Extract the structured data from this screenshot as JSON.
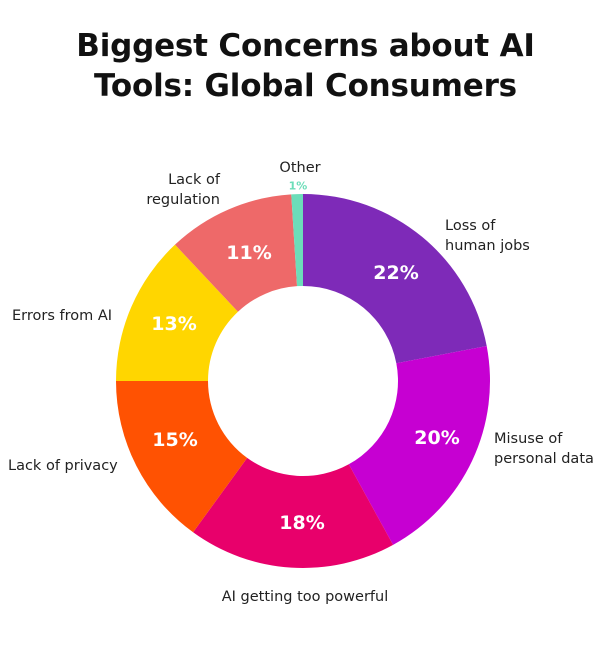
{
  "title_lines": [
    "Biggest Concerns about AI",
    "Tools: Global Consumers"
  ],
  "chart_data": {
    "type": "pie",
    "subtype": "donut",
    "title": "Biggest Concerns about AI Tools: Global Consumers",
    "start_angle_deg": 0,
    "direction": "clockwise",
    "categories": [
      "Loss of human jobs",
      "Misuse of personal data",
      "AI getting too powerful",
      "Lack of privacy",
      "Errors from AI",
      "Lack of regulation",
      "Other"
    ],
    "values": [
      22,
      20,
      18,
      15,
      13,
      11,
      1
    ],
    "unit": "%",
    "colors": [
      "#7E2AB8",
      "#C600D2",
      "#E8006B",
      "#FF5202",
      "#FFD600",
      "#EE6969",
      "#6CDDB9"
    ],
    "value_labels": [
      "22%",
      "20%",
      "18%",
      "15%",
      "13%",
      "11%",
      "1%"
    ]
  },
  "labels": {
    "jobs": [
      "Loss of",
      "human jobs"
    ],
    "misuse": [
      "Misuse of",
      "personal data"
    ],
    "powerful": [
      "AI getting too powerful"
    ],
    "privacy": [
      "Lack of privacy"
    ],
    "errors": [
      "Errors from AI"
    ],
    "regulation": [
      "Lack of",
      "regulation"
    ],
    "other": [
      "Other"
    ]
  }
}
